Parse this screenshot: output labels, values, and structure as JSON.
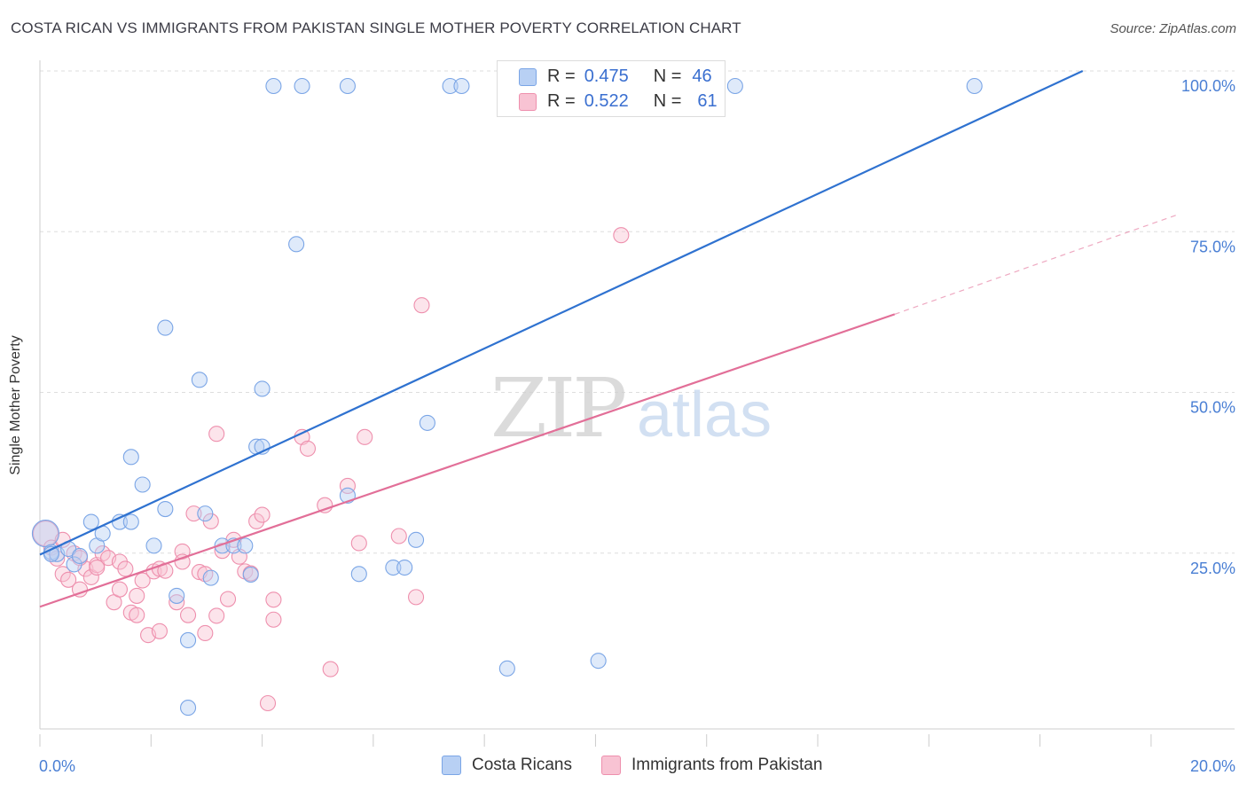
{
  "header": {
    "title": "COSTA RICAN VS IMMIGRANTS FROM PAKISTAN SINGLE MOTHER POVERTY CORRELATION CHART",
    "source": "Source: ZipAtlas.com"
  },
  "legend": {
    "items": [
      {
        "r_label": "R =",
        "r_value": "0.475",
        "n_label": "N =",
        "n_value": "46"
      },
      {
        "r_label": "R =",
        "r_value": "0.522",
        "n_label": "N =",
        "n_value": "61"
      }
    ]
  },
  "bottom_legend": {
    "series_1": "Costa Ricans",
    "series_2": "Immigrants from Pakistan"
  },
  "watermark": {
    "zip": "ZIP",
    "atlas": "atlas"
  },
  "colors": {
    "blue_fill": "#b8d0f4",
    "blue_stroke": "#7aa5e6",
    "blue_line": "#2f72d0",
    "pink_fill": "#f8c3d3",
    "pink_stroke": "#ee8fad",
    "pink_line": "#e26f98",
    "tick_label": "#4a7fd4",
    "grid": "#dedede"
  },
  "chart_data": {
    "type": "scatter",
    "title": "COSTA RICAN VS IMMIGRANTS FROM PAKISTAN SINGLE MOTHER POVERTY CORRELATION CHART",
    "xlabel": "",
    "ylabel": "Single Mother Poverty",
    "xlim": [
      0,
      20
    ],
    "ylim": [
      0,
      100
    ],
    "x_tick_labels": [
      {
        "value": 0,
        "label": "0.0%"
      },
      {
        "value": 20,
        "label": "20.0%"
      }
    ],
    "y_tick_labels": [
      {
        "value": 25,
        "label": "25.0%"
      },
      {
        "value": 50,
        "label": "50.0%"
      },
      {
        "value": 75,
        "label": "75.0%"
      },
      {
        "value": 100,
        "label": "100.0%"
      }
    ],
    "series": [
      {
        "name": "Costa Ricans",
        "r": 0.475,
        "n": 46,
        "trend": {
          "x0": 0,
          "y0": 27.1,
          "x1": 18.3,
          "y1": 100
        },
        "points": [
          [
            0.1,
            30.4
          ],
          [
            0.2,
            27.5
          ],
          [
            0.3,
            27.2
          ],
          [
            0.5,
            28.0
          ],
          [
            0.6,
            25.6
          ],
          [
            0.7,
            26.9
          ],
          [
            0.9,
            32.2
          ],
          [
            1.0,
            28.5
          ],
          [
            1.1,
            30.4
          ],
          [
            1.4,
            32.2
          ],
          [
            1.6,
            32.2
          ],
          [
            1.6,
            42.3
          ],
          [
            1.8,
            38.0
          ],
          [
            2.0,
            28.5
          ],
          [
            2.2,
            34.2
          ],
          [
            2.2,
            62.4
          ],
          [
            2.4,
            20.7
          ],
          [
            2.6,
            3.3
          ],
          [
            2.6,
            13.8
          ],
          [
            2.8,
            54.3
          ],
          [
            2.9,
            33.5
          ],
          [
            3.0,
            23.5
          ],
          [
            3.2,
            28.5
          ],
          [
            3.4,
            28.5
          ],
          [
            3.6,
            28.5
          ],
          [
            3.7,
            24.0
          ],
          [
            3.8,
            43.9
          ],
          [
            3.9,
            43.9
          ],
          [
            3.9,
            52.9
          ],
          [
            4.1,
            100
          ],
          [
            4.5,
            75.4
          ],
          [
            4.6,
            100
          ],
          [
            5.4,
            36.3
          ],
          [
            5.4,
            100
          ],
          [
            5.6,
            24.1
          ],
          [
            6.2,
            25.1
          ],
          [
            6.4,
            25.1
          ],
          [
            6.6,
            29.4
          ],
          [
            6.8,
            47.6
          ],
          [
            7.2,
            100
          ],
          [
            7.4,
            100
          ],
          [
            8.2,
            9.4
          ],
          [
            9.8,
            10.6
          ],
          [
            12.2,
            100
          ],
          [
            16.4,
            100
          ],
          [
            0.2,
            27.2
          ]
        ]
      },
      {
        "name": "Immigrants from Pakistan",
        "r": 0.522,
        "n": 61,
        "trend": {
          "x0": 0,
          "y0": 19.0,
          "x1": 15.0,
          "y1": 64.5,
          "dash_to_x": 20,
          "dash_to_y": 80.1
        },
        "points": [
          [
            0.1,
            30.4
          ],
          [
            0.2,
            28.2
          ],
          [
            0.3,
            26.5
          ],
          [
            0.4,
            29.4
          ],
          [
            0.4,
            24.1
          ],
          [
            0.5,
            23.2
          ],
          [
            0.6,
            27.3
          ],
          [
            0.7,
            21.7
          ],
          [
            0.8,
            24.9
          ],
          [
            0.9,
            23.6
          ],
          [
            1.0,
            25.5
          ],
          [
            1.1,
            27.3
          ],
          [
            1.2,
            26.6
          ],
          [
            1.3,
            19.7
          ],
          [
            1.4,
            26.0
          ],
          [
            1.4,
            21.7
          ],
          [
            1.5,
            24.9
          ],
          [
            1.6,
            18.1
          ],
          [
            1.7,
            17.7
          ],
          [
            1.7,
            20.7
          ],
          [
            1.8,
            23.1
          ],
          [
            1.9,
            14.6
          ],
          [
            2.0,
            24.5
          ],
          [
            2.1,
            24.9
          ],
          [
            2.1,
            15.2
          ],
          [
            2.2,
            24.6
          ],
          [
            2.4,
            19.7
          ],
          [
            2.5,
            27.6
          ],
          [
            2.5,
            26.0
          ],
          [
            2.6,
            17.7
          ],
          [
            2.7,
            33.5
          ],
          [
            2.8,
            24.4
          ],
          [
            2.9,
            14.9
          ],
          [
            3.0,
            32.3
          ],
          [
            3.1,
            17.6
          ],
          [
            3.2,
            27.7
          ],
          [
            3.1,
            45.9
          ],
          [
            3.3,
            20.2
          ],
          [
            3.4,
            29.4
          ],
          [
            3.5,
            26.8
          ],
          [
            3.6,
            24.5
          ],
          [
            3.7,
            24.2
          ],
          [
            3.8,
            32.3
          ],
          [
            3.9,
            33.3
          ],
          [
            4.0,
            4.0
          ],
          [
            4.1,
            20.1
          ],
          [
            4.1,
            17.0
          ],
          [
            4.6,
            45.4
          ],
          [
            4.7,
            43.6
          ],
          [
            5.0,
            34.8
          ],
          [
            5.1,
            9.3
          ],
          [
            5.6,
            28.9
          ],
          [
            5.4,
            37.8
          ],
          [
            5.7,
            45.4
          ],
          [
            6.3,
            30.0
          ],
          [
            6.6,
            20.5
          ],
          [
            6.7,
            65.9
          ],
          [
            10.2,
            76.8
          ],
          [
            0.7,
            26.6
          ],
          [
            1.0,
            25.1
          ],
          [
            2.9,
            24.1
          ]
        ]
      }
    ]
  }
}
